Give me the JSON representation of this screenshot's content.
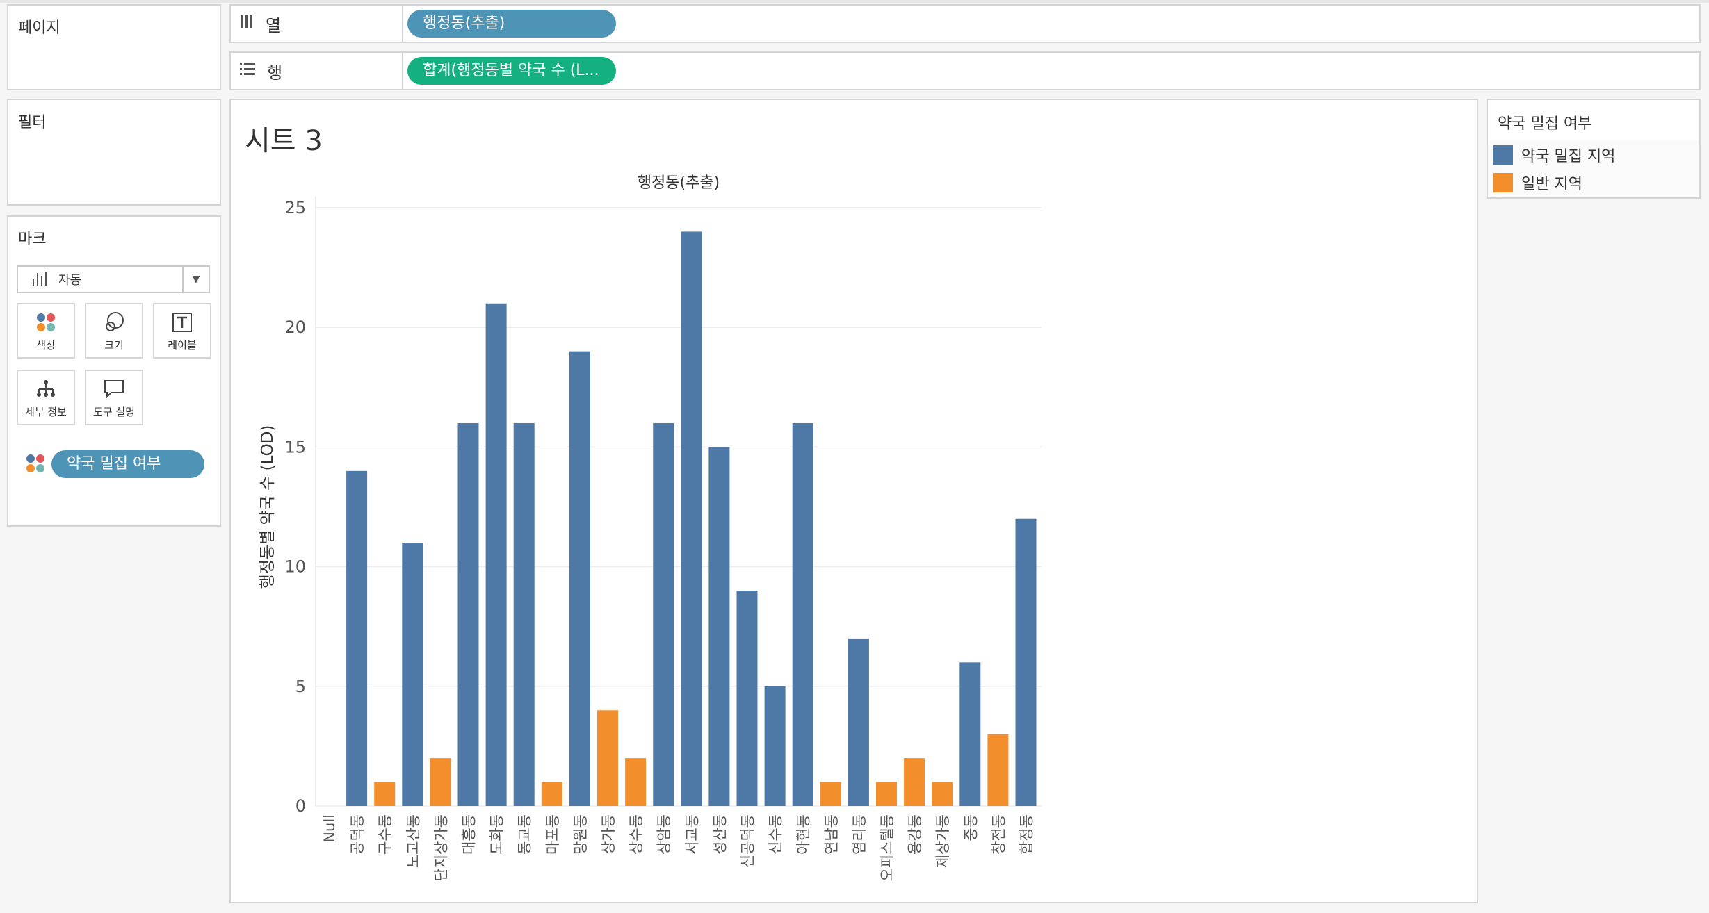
{
  "panels": {
    "pages_title": "페이지",
    "filters_title": "필터",
    "marks_title": "마크"
  },
  "shelves": {
    "columns": {
      "label": "열",
      "pill": "행정동(추출)"
    },
    "rows": {
      "label": "행",
      "pill": "합계(행정동별 약국 수 (L..."
    }
  },
  "marks": {
    "type_label": "자동",
    "buttons": {
      "color": "색상",
      "size": "크기",
      "label": "레이블",
      "detail": "세부 정보",
      "tooltip": "도구 설명"
    },
    "color_pill": "약국 밀집 여부"
  },
  "legend": {
    "title": "약국 밀집 여부",
    "items": [
      {
        "label": "약국 밀집 지역",
        "color": "#4e79a7"
      },
      {
        "label": "일반 지역",
        "color": "#f28e2b"
      }
    ]
  },
  "sheet": {
    "title": "시트 3"
  },
  "chart_data": {
    "type": "bar",
    "title": "행정동(추출)",
    "xlabel": "",
    "ylabel": "행정동별 약국 수 (LOD)",
    "ylim": [
      0,
      25
    ],
    "yticks": [
      0,
      5,
      10,
      15,
      20,
      25
    ],
    "grid": true,
    "categories": [
      "Null",
      "공덕동",
      "구수동",
      "노고산동",
      "단지상가동",
      "대흥동",
      "도화동",
      "동교동",
      "마포동",
      "망원동",
      "상가동",
      "상수동",
      "상암동",
      "서교동",
      "성산동",
      "신공덕동",
      "신수동",
      "아현동",
      "연남동",
      "염리동",
      "오피스텔동",
      "용강동",
      "제상가동",
      "중동",
      "창전동",
      "합정동"
    ],
    "values": [
      0,
      14,
      1,
      11,
      2,
      16,
      21,
      16,
      1,
      19,
      4,
      2,
      16,
      24,
      15,
      9,
      5,
      16,
      1,
      7,
      1,
      2,
      1,
      6,
      3,
      12
    ],
    "groups": [
      "none",
      "약국 밀집 지역",
      "일반 지역",
      "약국 밀집 지역",
      "일반 지역",
      "약국 밀집 지역",
      "약국 밀집 지역",
      "약국 밀집 지역",
      "일반 지역",
      "약국 밀집 지역",
      "일반 지역",
      "일반 지역",
      "약국 밀집 지역",
      "약국 밀집 지역",
      "약국 밀집 지역",
      "약국 밀집 지역",
      "약국 밀집 지역",
      "약국 밀집 지역",
      "일반 지역",
      "약국 밀집 지역",
      "일반 지역",
      "일반 지역",
      "일반 지역",
      "약국 밀집 지역",
      "일반 지역",
      "약국 밀집 지역"
    ]
  }
}
